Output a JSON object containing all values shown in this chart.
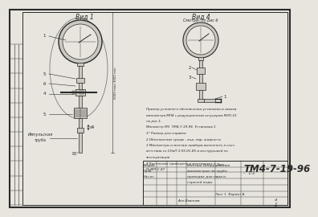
{
  "bg_color": "#d8d5cc",
  "paper_color": "#e8e5de",
  "line_color": "#2a2a2a",
  "light_fill": "#ccc9c0",
  "title": "TM4-7-19-96",
  "view1_label": "Вид 1",
  "view4_label": "Вид 4",
  "view4_sublabel": "Смотри- по рис б",
  "notes": [
    "Пример условного обозначения установки и заказа",
    "манометра МП4 с редукционным штуцером МЗП-15",
    "по рис 1:",
    "Манометр МЗ  ТМ4-7-19-96  Установка 1",
    "1* Размер для справки",
    "2 Обозначение среды - вод. пар, жидкость",
    "3 Манометры и монтаж прибора выполнять в соот-",
    "ветствии со СНиП 3.05.01-85 и инструкцией по",
    "эксплуатации",
    "4 Крепление приведено в монтажных к",
    "ПиМЛ С-87"
  ],
  "pipe_label_line1": "Импульсная",
  "pipe_label_line2": "труба",
  "dim_d4": "d4",
  "dim_angle": "80°",
  "dim_length": "5000 max 3000 min",
  "tb_title": "ТМ4-7-19-96",
  "tb_desc1": "Монтаж Оборудования",
  "tb_desc2": "манометров на трубо-",
  "tb_desc3": "проводах для пара и",
  "tb_desc4": "горячей воды",
  "tb_sheet": "Лист",
  "tb_pages": "-   1-2",
  "tb_format": "Лист 1  Формат А",
  "tb_razrab": "Разраб.",
  "tb_prov": "Пров.",
  "tb_nachotd": "Нач.от.",
  "tb_name": "Аня Иванова"
}
